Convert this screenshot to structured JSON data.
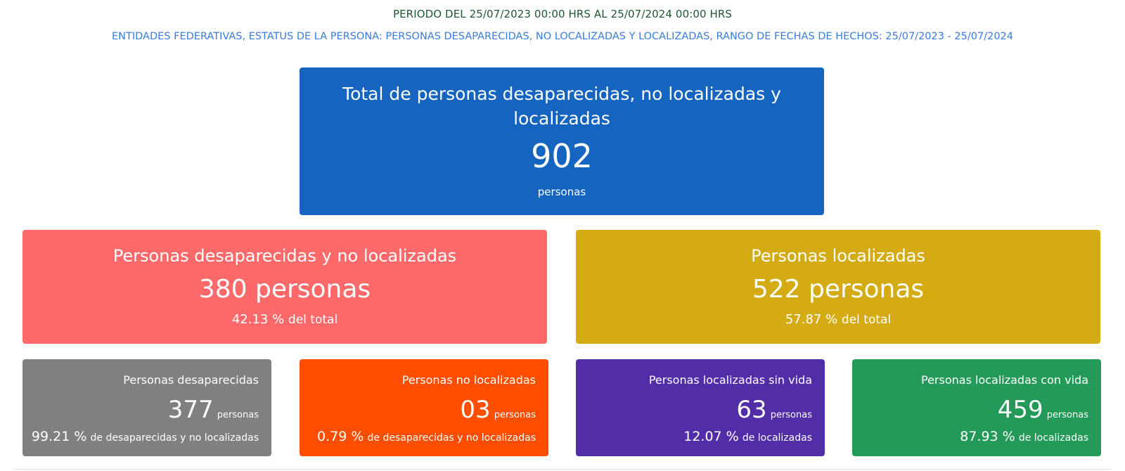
{
  "header": {
    "period": "PERIODO DEL 25/07/2023 00:00 HRS AL 25/07/2024 00:00 HRS",
    "filters": "ENTIDADES FEDERATIVAS, ESTATUS DE LA PERSONA: PERSONAS DESAPARECIDAS, NO LOCALIZADAS Y LOCALIZADAS, RANGO DE FECHAS DE HECHOS: 25/07/2023 - 25/07/2024"
  },
  "total": {
    "title": "Total de personas desaparecidas, no localizadas y localizadas",
    "value": "902",
    "unit": "personas",
    "color": "#1565c0"
  },
  "summary": [
    {
      "title": "Personas desaparecidas y no localizadas",
      "value": "380 personas",
      "percent": "42.13 %",
      "percent_suffix": "del total",
      "color": "#ff6969"
    },
    {
      "title": "Personas localizadas",
      "value": "522 personas",
      "percent": "57.87 %",
      "percent_suffix": "del total",
      "color": "#d4ab12"
    }
  ],
  "details": [
    {
      "title": "Personas desaparecidas",
      "value": "377",
      "unit": "personas",
      "percent": "99.21 %",
      "percent_suffix": "de desaparecidas y no localizadas",
      "color": "#808080"
    },
    {
      "title": "Personas no localizadas",
      "value": "03",
      "unit": "personas",
      "percent": "0.79 %",
      "percent_suffix": "de desaparecidas y no localizadas",
      "color": "#ff4e00"
    },
    {
      "title": "Personas localizadas sin vida",
      "value": "63",
      "unit": "personas",
      "percent": "12.07 %",
      "percent_suffix": "de localizadas",
      "color": "#512da8"
    },
    {
      "title": "Personas localizadas con vida",
      "value": "459",
      "unit": "personas",
      "percent": "87.93 %",
      "percent_suffix": "de localizadas",
      "color": "#239a57"
    }
  ]
}
